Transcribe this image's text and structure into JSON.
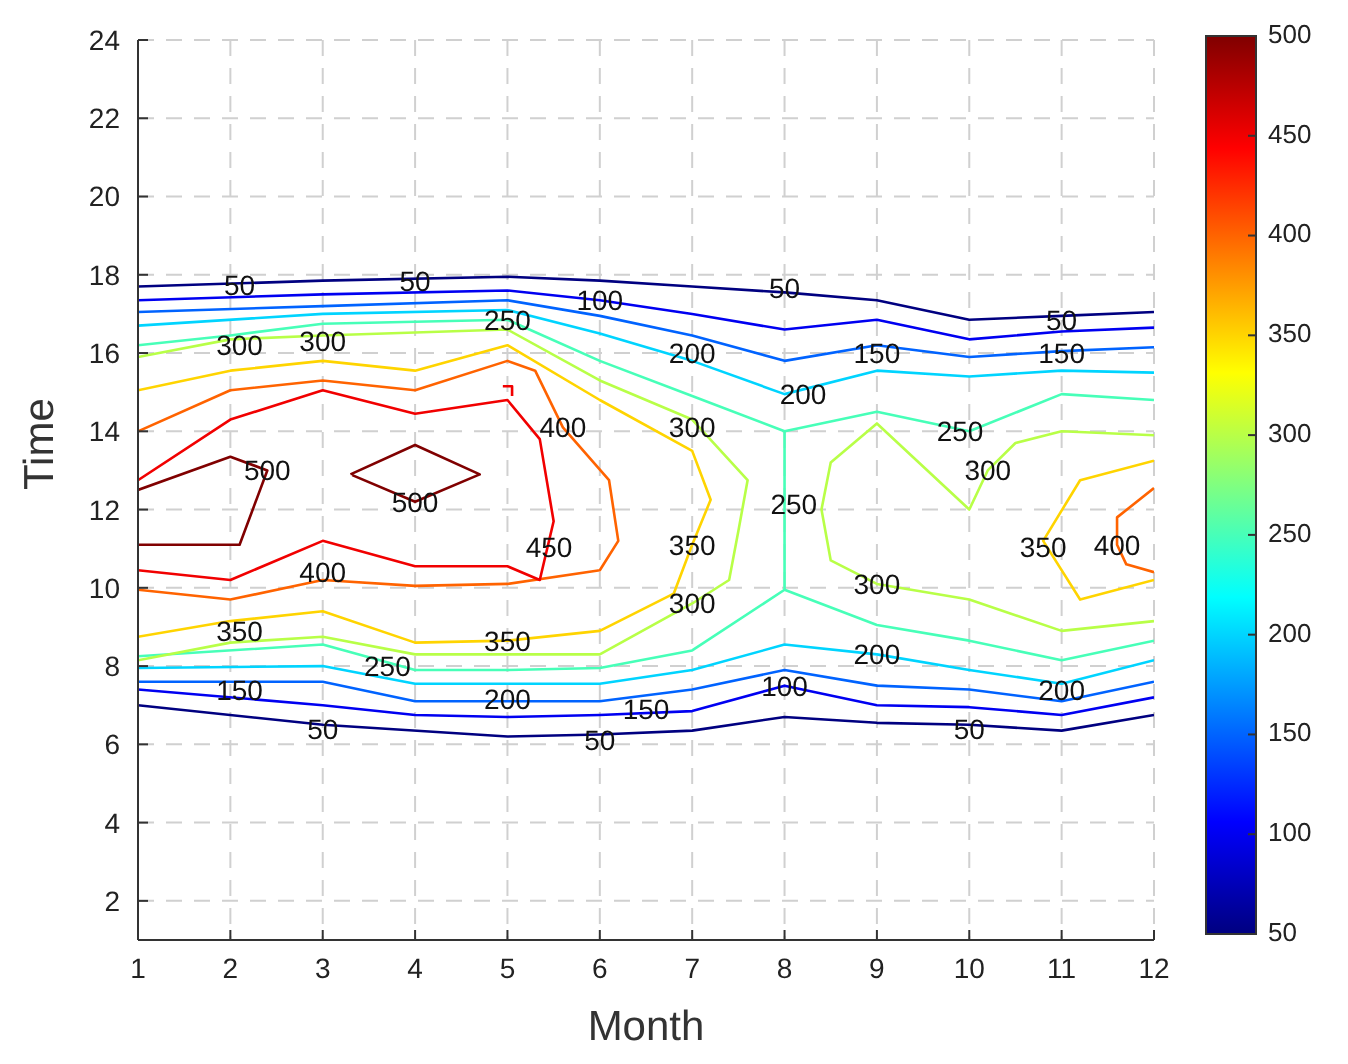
{
  "chart_data": {
    "type": "line",
    "xlabel": "Month",
    "ylabel": "Time",
    "xlim": [
      1,
      12
    ],
    "ylim": [
      1,
      24
    ],
    "xticks": [
      1,
      2,
      3,
      4,
      5,
      6,
      7,
      8,
      9,
      10,
      11,
      12
    ],
    "yticks": [
      2,
      4,
      6,
      8,
      10,
      12,
      14,
      16,
      18,
      20,
      22,
      24
    ],
    "grid": true,
    "marker": "none",
    "line_style": "solid",
    "clim": [
      50,
      500
    ],
    "cticks": [
      50,
      100,
      150,
      200,
      250,
      300,
      350,
      400,
      450,
      500
    ],
    "series": [
      {
        "color": "#000080",
        "x": [
          1,
          3,
          5,
          6,
          7,
          8,
          9,
          10,
          11,
          12
        ],
        "values": [
          17.7,
          17.85,
          17.95,
          17.85,
          17.7,
          17.55,
          17.35,
          16.85,
          16.95,
          17.05
        ]
      },
      {
        "color": "#000080",
        "x": [
          1,
          3,
          5,
          6,
          7,
          8,
          9,
          10,
          11,
          12
        ],
        "values": [
          7.0,
          6.5,
          6.2,
          6.25,
          6.35,
          6.7,
          6.55,
          6.5,
          6.35,
          6.75
        ]
      },
      {
        "color": "#0000f1",
        "x": [
          1,
          3,
          5,
          6,
          7,
          8,
          9,
          10,
          11,
          12
        ],
        "values": [
          17.35,
          17.5,
          17.6,
          17.35,
          17.0,
          16.6,
          16.85,
          16.35,
          16.55,
          16.65
        ]
      },
      {
        "color": "#0000f1",
        "x": [
          1,
          3,
          4,
          5,
          6,
          7,
          8,
          9,
          10,
          11,
          12
        ],
        "values": [
          7.4,
          7.0,
          6.75,
          6.7,
          6.75,
          6.85,
          7.5,
          7.0,
          6.95,
          6.75,
          7.2
        ]
      },
      {
        "color": "#0063ff",
        "x": [
          1,
          3,
          5,
          6,
          7,
          8,
          9,
          10,
          11,
          12
        ],
        "values": [
          17.05,
          17.2,
          17.35,
          16.95,
          16.45,
          15.8,
          16.2,
          15.9,
          16.05,
          16.15
        ]
      },
      {
        "color": "#0063ff",
        "x": [
          1,
          3,
          4,
          5,
          6,
          7,
          8,
          9,
          10,
          11,
          12
        ],
        "values": [
          7.6,
          7.6,
          7.1,
          7.1,
          7.1,
          7.4,
          7.9,
          7.5,
          7.4,
          7.1,
          7.6
        ]
      },
      {
        "color": "#00d4ff",
        "x": [
          1,
          3,
          5,
          6,
          7,
          8,
          9,
          10,
          11,
          12
        ],
        "values": [
          16.7,
          17.0,
          17.1,
          16.5,
          15.8,
          14.95,
          15.55,
          15.4,
          15.55,
          15.5
        ]
      },
      {
        "color": "#00d4ff",
        "x": [
          1,
          3,
          4,
          5,
          6,
          7,
          8,
          9,
          10,
          11,
          12
        ],
        "values": [
          7.95,
          8.0,
          7.55,
          7.55,
          7.55,
          7.9,
          8.55,
          8.3,
          7.9,
          7.55,
          8.15
        ]
      },
      {
        "color": "#47ffb8",
        "x": [
          1,
          2,
          3,
          5,
          6,
          7,
          8,
          9,
          10,
          11,
          12
        ],
        "values": [
          16.2,
          16.45,
          16.75,
          16.85,
          15.8,
          14.9,
          14.0,
          14.5,
          14.0,
          14.95,
          14.8
        ]
      },
      {
        "color": "#47ffb8",
        "x": [
          8,
          8
        ],
        "values": [
          14.0,
          9.95
        ]
      },
      {
        "color": "#47ffb8",
        "x": [
          1,
          3,
          4,
          5,
          6,
          7,
          8,
          9,
          10,
          11,
          12
        ],
        "values": [
          8.25,
          8.55,
          7.9,
          7.9,
          7.95,
          8.4,
          9.95,
          9.05,
          8.65,
          8.15,
          8.65
        ]
      },
      {
        "color": "#b8ff47",
        "x": [
          1,
          2,
          3,
          5,
          6,
          7,
          7.6,
          7.5,
          7.4,
          7,
          6,
          5,
          4,
          3,
          2,
          1
        ],
        "values": [
          15.9,
          16.35,
          16.45,
          16.6,
          15.3,
          14.3,
          12.75,
          11.45,
          10.2,
          9.6,
          8.3,
          8.3,
          8.3,
          8.75,
          8.6,
          8.15
        ]
      },
      {
        "color": "#b8ff47",
        "x": [
          12,
          11,
          10.5,
          10.2,
          10,
          9,
          8.5,
          8.4,
          8.5,
          9,
          10,
          11,
          12
        ],
        "values": [
          13.9,
          14.0,
          13.7,
          13.0,
          12.0,
          14.2,
          13.2,
          12.0,
          10.7,
          10.1,
          9.7,
          8.9,
          9.15
        ]
      },
      {
        "color": "#ffd400",
        "x": [
          1,
          2,
          3,
          4,
          5,
          6,
          7,
          7.2,
          7.0,
          6.8,
          6,
          5,
          4,
          3,
          2,
          1
        ],
        "values": [
          15.05,
          15.55,
          15.8,
          15.55,
          16.2,
          14.8,
          13.5,
          12.25,
          11.1,
          9.85,
          8.9,
          8.65,
          8.6,
          9.4,
          9.15,
          8.75
        ]
      },
      {
        "color": "#ffd400",
        "x": [
          12,
          11.2,
          10.8,
          11.2,
          12
        ],
        "values": [
          13.25,
          12.75,
          11.2,
          9.7,
          10.2
        ]
      },
      {
        "color": "#ff6300",
        "x": [
          1,
          2,
          3,
          4,
          5,
          5.3,
          5.6,
          6.1,
          6.2,
          6,
          5,
          4,
          3,
          2,
          1
        ],
        "values": [
          14.0,
          15.05,
          15.3,
          15.05,
          15.8,
          15.55,
          14.1,
          12.75,
          11.2,
          10.45,
          10.1,
          10.05,
          10.2,
          9.7,
          9.95
        ]
      },
      {
        "color": "#ff6300",
        "x": [
          12,
          11.6,
          11.6,
          11.7,
          12
        ],
        "values": [
          12.55,
          11.8,
          11.1,
          10.6,
          10.4
        ]
      },
      {
        "color": "#f10000",
        "x": [
          1,
          2,
          3,
          4,
          5,
          5.35,
          5.5,
          5.35,
          5,
          4,
          3,
          2,
          1
        ],
        "values": [
          12.75,
          14.3,
          15.05,
          14.45,
          14.8,
          13.8,
          11.7,
          10.2,
          10.55,
          10.55,
          11.2,
          10.2,
          10.45
        ]
      },
      {
        "color": "#f10000",
        "x": [
          4.95,
          5.05,
          5.05
        ],
        "values": [
          15.15,
          15.15,
          14.9
        ]
      },
      {
        "color": "#800000",
        "x": [
          1,
          2,
          2.4,
          2.1,
          1
        ],
        "values": [
          12.5,
          13.35,
          13.0,
          11.1,
          11.1
        ]
      },
      {
        "color": "#800000",
        "x": [
          3.3,
          4,
          4.7,
          4,
          3.32
        ],
        "values": [
          12.9,
          13.65,
          12.9,
          12.2,
          12.88
        ]
      }
    ],
    "annotations": [
      {
        "text": "50",
        "x": 2.1,
        "y": 17.75
      },
      {
        "text": "50",
        "x": 4,
        "y": 17.85
      },
      {
        "text": "50",
        "x": 8,
        "y": 17.65
      },
      {
        "text": "50",
        "x": 11,
        "y": 16.85
      },
      {
        "text": "50",
        "x": 3,
        "y": 6.4
      },
      {
        "text": "50",
        "x": 6,
        "y": 6.1
      },
      {
        "text": "50",
        "x": 10,
        "y": 6.4
      },
      {
        "text": "100",
        "x": 6,
        "y": 17.35
      },
      {
        "text": "100",
        "x": 8,
        "y": 7.5
      },
      {
        "text": "150",
        "x": 2.1,
        "y": 7.4
      },
      {
        "text": "150",
        "x": 9,
        "y": 16.0
      },
      {
        "text": "150",
        "x": 11,
        "y": 16.0
      },
      {
        "text": "150",
        "x": 6.5,
        "y": 6.9
      },
      {
        "text": "200",
        "x": 7,
        "y": 16.0
      },
      {
        "text": "200",
        "x": 8.2,
        "y": 14.95
      },
      {
        "text": "200",
        "x": 9,
        "y": 8.3
      },
      {
        "text": "200",
        "x": 11,
        "y": 7.4
      },
      {
        "text": "200",
        "x": 5,
        "y": 7.15
      },
      {
        "text": "250",
        "x": 5,
        "y": 16.85
      },
      {
        "text": "250",
        "x": 3.7,
        "y": 8.0
      },
      {
        "text": "250",
        "x": 9.9,
        "y": 14.0
      },
      {
        "text": "250",
        "x": 8.1,
        "y": 12.15
      },
      {
        "text": "300",
        "x": 2.1,
        "y": 16.2
      },
      {
        "text": "300",
        "x": 3,
        "y": 16.3
      },
      {
        "text": "300",
        "x": 7,
        "y": 14.1
      },
      {
        "text": "300",
        "x": 7,
        "y": 9.6
      },
      {
        "text": "300",
        "x": 9,
        "y": 10.1
      },
      {
        "text": "300",
        "x": 10.2,
        "y": 13.0
      },
      {
        "text": "350",
        "x": 2.1,
        "y": 8.9
      },
      {
        "text": "350",
        "x": 5,
        "y": 8.65
      },
      {
        "text": "350",
        "x": 7,
        "y": 11.1
      },
      {
        "text": "350",
        "x": 10.8,
        "y": 11.05
      },
      {
        "text": "400",
        "x": 5.6,
        "y": 14.1
      },
      {
        "text": "400",
        "x": 3,
        "y": 10.4
      },
      {
        "text": "400",
        "x": 11.6,
        "y": 11.1
      },
      {
        "text": "450",
        "x": 5.45,
        "y": 11.05
      },
      {
        "text": "500",
        "x": 2.4,
        "y": 13.0
      },
      {
        "text": "500",
        "x": 4,
        "y": 12.2
      }
    ]
  }
}
